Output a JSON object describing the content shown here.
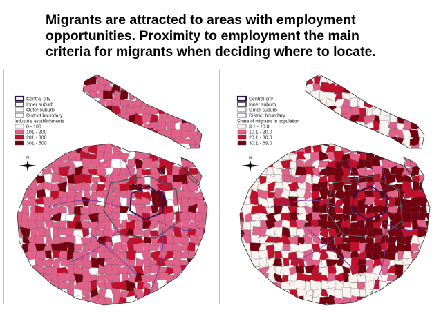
{
  "title": {
    "lines": [
      "Migrants are attracted to areas with employment",
      "opportunities. Proximity to employment the main",
      "criteria for migrants when deciding where to locate."
    ]
  },
  "maps": [
    {
      "legend": {
        "boundaries": [
          "Central city",
          "Inner suburb",
          "Outer suburb",
          "District boundary"
        ],
        "title": "Industrial establishments",
        "classes": [
          {
            "label": "0 - 100",
            "color": "#ffffff"
          },
          {
            "label": "101 - 200",
            "color": "#e0628a"
          },
          {
            "label": "201 - 300",
            "color": "#c2102c"
          },
          {
            "label": "301 - 500",
            "color": "#72000f"
          }
        ]
      },
      "north": "N"
    },
    {
      "legend": {
        "boundaries": [
          "Central city",
          "Inner suburb",
          "Outer suburb",
          "District boundary"
        ],
        "title": "Share of migrants in population",
        "classes": [
          {
            "label": "3.1 - 10.0",
            "color": "#fbf3f0"
          },
          {
            "label": "10.1 - 20.0",
            "color": "#e0628a"
          },
          {
            "label": "20.1 - 30.0",
            "color": "#c2102c"
          },
          {
            "label": "30.1 - 69.0",
            "color": "#72000f"
          }
        ]
      },
      "north": "N"
    }
  ]
}
